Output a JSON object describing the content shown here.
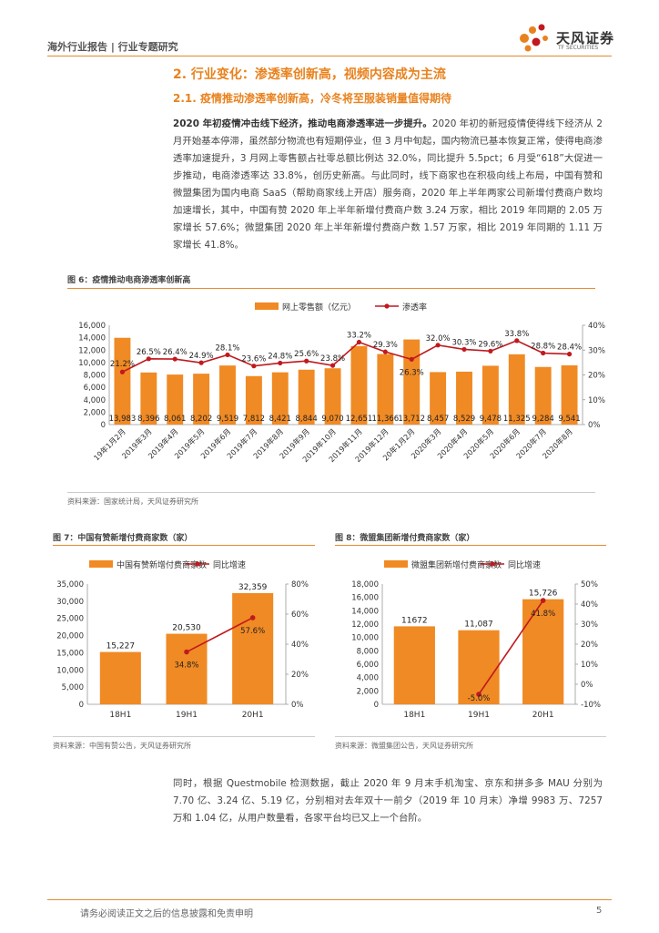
{
  "header": {
    "left_text": "海外行业报告 | 行业专题研究",
    "logo_cn": "天风证券",
    "logo_en": "TF SECURITIES"
  },
  "section": {
    "h1": "2. 行业变化：渗透率创新高，视频内容成为主流",
    "h2": "2.1. 疫情推动渗透率创新高，冷冬将至服装销量值得期待"
  },
  "paragraph1": {
    "bold": "2020 年初疫情冲击线下经济，推动电商渗透率进一步提升。",
    "text": "2020 年初的新冠疫情使得线下经济从 2 月开始基本停滞，虽然部分物流也有短期停业，但 3 月中旬起，国内物流已基本恢复正常，使得电商渗透率加速提升，3 月网上零售额占社零总额比例达 32.0%，同比提升 5.5pct；6 月受“618”大促进一步推动，电商渗透率达 33.8%，创历史新高。与此同时，线下商家也在积极向线上布局，中国有赞和微盟集团为国内电商 SaaS（帮助商家线上开店）服务商，2020 年上半年两家公司新增付费商户数均加速增长，其中，中国有赞 2020 年上半年新增付费商户数 3.24 万家，相比 2019 年同期的 2.05 万家增长 57.6%；微盟集团 2020 年上半年新增付费商户数 1.57 万家，相比 2019 年同期的 1.11 万家增长 41.8%。"
  },
  "figure6": {
    "title": "图 6：疫情推动电商渗透率创新高",
    "source": "资料来源：国家统计局，天风证券研究所"
  },
  "figure7": {
    "title": "图 7：中国有赞新增付费商家数（家）",
    "source": "资料来源：中国有赞公告，天风证券研究所"
  },
  "figure8": {
    "title": "图 8：微盟集团新增付费商家数（家）",
    "source": "资料来源：微盟集团公告，天风证券研究所"
  },
  "paragraph2": {
    "text": "同时，根据 Questmobile 检测数据，截止 2020 年 9 月末手机淘宝、京东和拼多多 MAU 分别为 7.70 亿、3.24 亿、5.19 亿，分别相对去年双十一前夕（2019 年 10 月末）净增 9983 万、7257 万和 1.04 亿，从用户数量看，各家平台均已又上一个台阶。"
  },
  "footer": {
    "disclaimer": "请务必阅读正文之后的信息披露和免责申明",
    "page": "5"
  },
  "colors": {
    "bar": "#f08a24",
    "line": "#c0191e",
    "accent": "#e8821e"
  },
  "chart_data": [
    {
      "type": "bar+line",
      "title": "图 6：疫情推动电商渗透率创新高",
      "categories": [
        "19年1月2月",
        "2019年3月",
        "2019年4月",
        "2019年5月",
        "2019年6月",
        "2019年7月",
        "2019年8月",
        "2019年9月",
        "2019年10月",
        "2019年11月",
        "2019年12月",
        "20年1月2月",
        "2020年3月",
        "2020年4月",
        "2020年5月",
        "2020年6月",
        "2020年7月",
        "2020年8月"
      ],
      "bar_labels": [
        "13,983",
        "8,396",
        "8,061",
        "8,202",
        "9,519",
        "7,812",
        "8,421",
        "8,844",
        "9,070",
        "12,651",
        "11,366",
        "13,712",
        "8,457",
        "8,529",
        "9,478",
        "11,325",
        "9,284",
        "9,541"
      ],
      "line_labels": [
        "21.2%",
        "26.5%",
        "26.4%",
        "24.9%",
        "28.1%",
        "23.6%",
        "24.8%",
        "25.6%",
        "23.8%",
        "33.2%",
        "29.3%",
        "26.3%",
        "32.0%",
        "30.3%",
        "29.6%",
        "33.8%",
        "28.8%",
        "28.4%"
      ],
      "series": [
        {
          "name": "网上零售额（亿元）",
          "axis": "left",
          "values": [
            13983,
            8396,
            8061,
            8202,
            9519,
            7812,
            8421,
            8844,
            9070,
            12651,
            11366,
            13712,
            8457,
            8529,
            9478,
            11325,
            9284,
            9541
          ]
        },
        {
          "name": "渗透率",
          "axis": "right",
          "values": [
            21.2,
            26.5,
            26.4,
            24.9,
            28.1,
            23.6,
            24.8,
            25.6,
            23.8,
            33.2,
            29.3,
            26.3,
            32.0,
            30.3,
            29.6,
            33.8,
            28.8,
            28.4
          ]
        }
      ],
      "y_left": {
        "min": 0,
        "max": 16000,
        "step": 2000,
        "ticks": [
          "0",
          "2,000",
          "4,000",
          "6,000",
          "8,000",
          "10,000",
          "12,000",
          "14,000",
          "16,000"
        ]
      },
      "y_right": {
        "min": 0,
        "max": 40,
        "step": 10,
        "ticks": [
          "0%",
          "10%",
          "20%",
          "30%",
          "40%"
        ]
      },
      "legend": "top-center"
    },
    {
      "type": "bar+line",
      "title": "图 7：中国有赞新增付费商家数（家）",
      "categories": [
        "18H1",
        "19H1",
        "20H1"
      ],
      "bar_labels": [
        "15,227",
        "20,530",
        "32,359"
      ],
      "line_labels": [
        "",
        "34.8%",
        "57.6%"
      ],
      "series": [
        {
          "name": "中国有赞新增付费商家数",
          "axis": "left",
          "values": [
            15227,
            20530,
            32359
          ]
        },
        {
          "name": "同比增速",
          "axis": "right",
          "values": [
            null,
            34.8,
            57.6
          ]
        }
      ],
      "y_left": {
        "min": 0,
        "max": 35000,
        "step": 5000,
        "ticks": [
          "0",
          "5,000",
          "10,000",
          "15,000",
          "20,000",
          "25,000",
          "30,000",
          "35,000"
        ]
      },
      "y_right": {
        "min": 0,
        "max": 80,
        "step": 20,
        "ticks": [
          "0%",
          "20%",
          "40%",
          "60%",
          "80%"
        ]
      },
      "legend": "top-center"
    },
    {
      "type": "bar+line",
      "title": "图 8：微盟集团新增付费商家数（家）",
      "categories": [
        "18H1",
        "19H1",
        "20H1"
      ],
      "bar_labels": [
        "11672",
        "11,087",
        "15,726"
      ],
      "line_labels": [
        "",
        "-5.0%",
        "41.8%"
      ],
      "series": [
        {
          "name": "微盟集团新增付费商家数",
          "axis": "left",
          "values": [
            11672,
            11087,
            15726
          ]
        },
        {
          "name": "同比增速",
          "axis": "right",
          "values": [
            null,
            -5.0,
            41.8
          ]
        }
      ],
      "y_left": {
        "min": 0,
        "max": 18000,
        "step": 2000,
        "ticks": [
          "0",
          "2,000",
          "4,000",
          "6,000",
          "8,000",
          "10,000",
          "12,000",
          "14,000",
          "16,000",
          "18,000"
        ]
      },
      "y_right": {
        "min": -10,
        "max": 50,
        "step": 10,
        "ticks": [
          "-10%",
          "0%",
          "10%",
          "20%",
          "30%",
          "40%",
          "50%"
        ]
      },
      "legend": "top-center"
    }
  ]
}
